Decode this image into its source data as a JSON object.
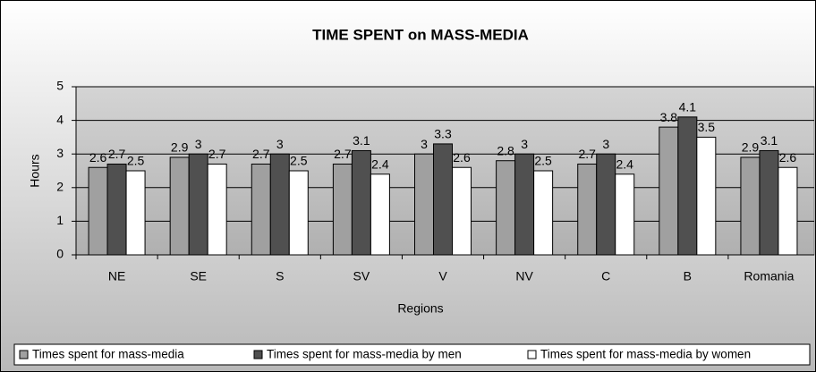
{
  "chart_data": {
    "type": "bar",
    "title": "TIME SPENT on MASS-MEDIA",
    "x_label": "Regions",
    "y_label": "Hours",
    "categories": [
      "NE",
      "SE",
      "S",
      "SV",
      "V",
      "NV",
      "C",
      "B",
      "Romania"
    ],
    "series": [
      {
        "name": "Times spent for mass-media",
        "color": "#a0a0a0",
        "values": [
          2.6,
          2.9,
          2.7,
          2.7,
          3,
          2.8,
          2.7,
          3.8,
          2.9
        ]
      },
      {
        "name": "Times spent for mass-media by men",
        "color": "#505050",
        "values": [
          2.7,
          3,
          3,
          3.1,
          3.3,
          3,
          3,
          4.1,
          3.1
        ]
      },
      {
        "name": "Times spent for mass-media by women",
        "color": "#ffffff",
        "values": [
          2.5,
          2.7,
          2.5,
          2.4,
          2.6,
          2.5,
          2.4,
          3.5,
          2.6
        ]
      }
    ],
    "ylim": [
      0,
      5
    ],
    "yticks": [
      0,
      1,
      2,
      3,
      4,
      5
    ],
    "grid": true,
    "legend": "bottom"
  }
}
